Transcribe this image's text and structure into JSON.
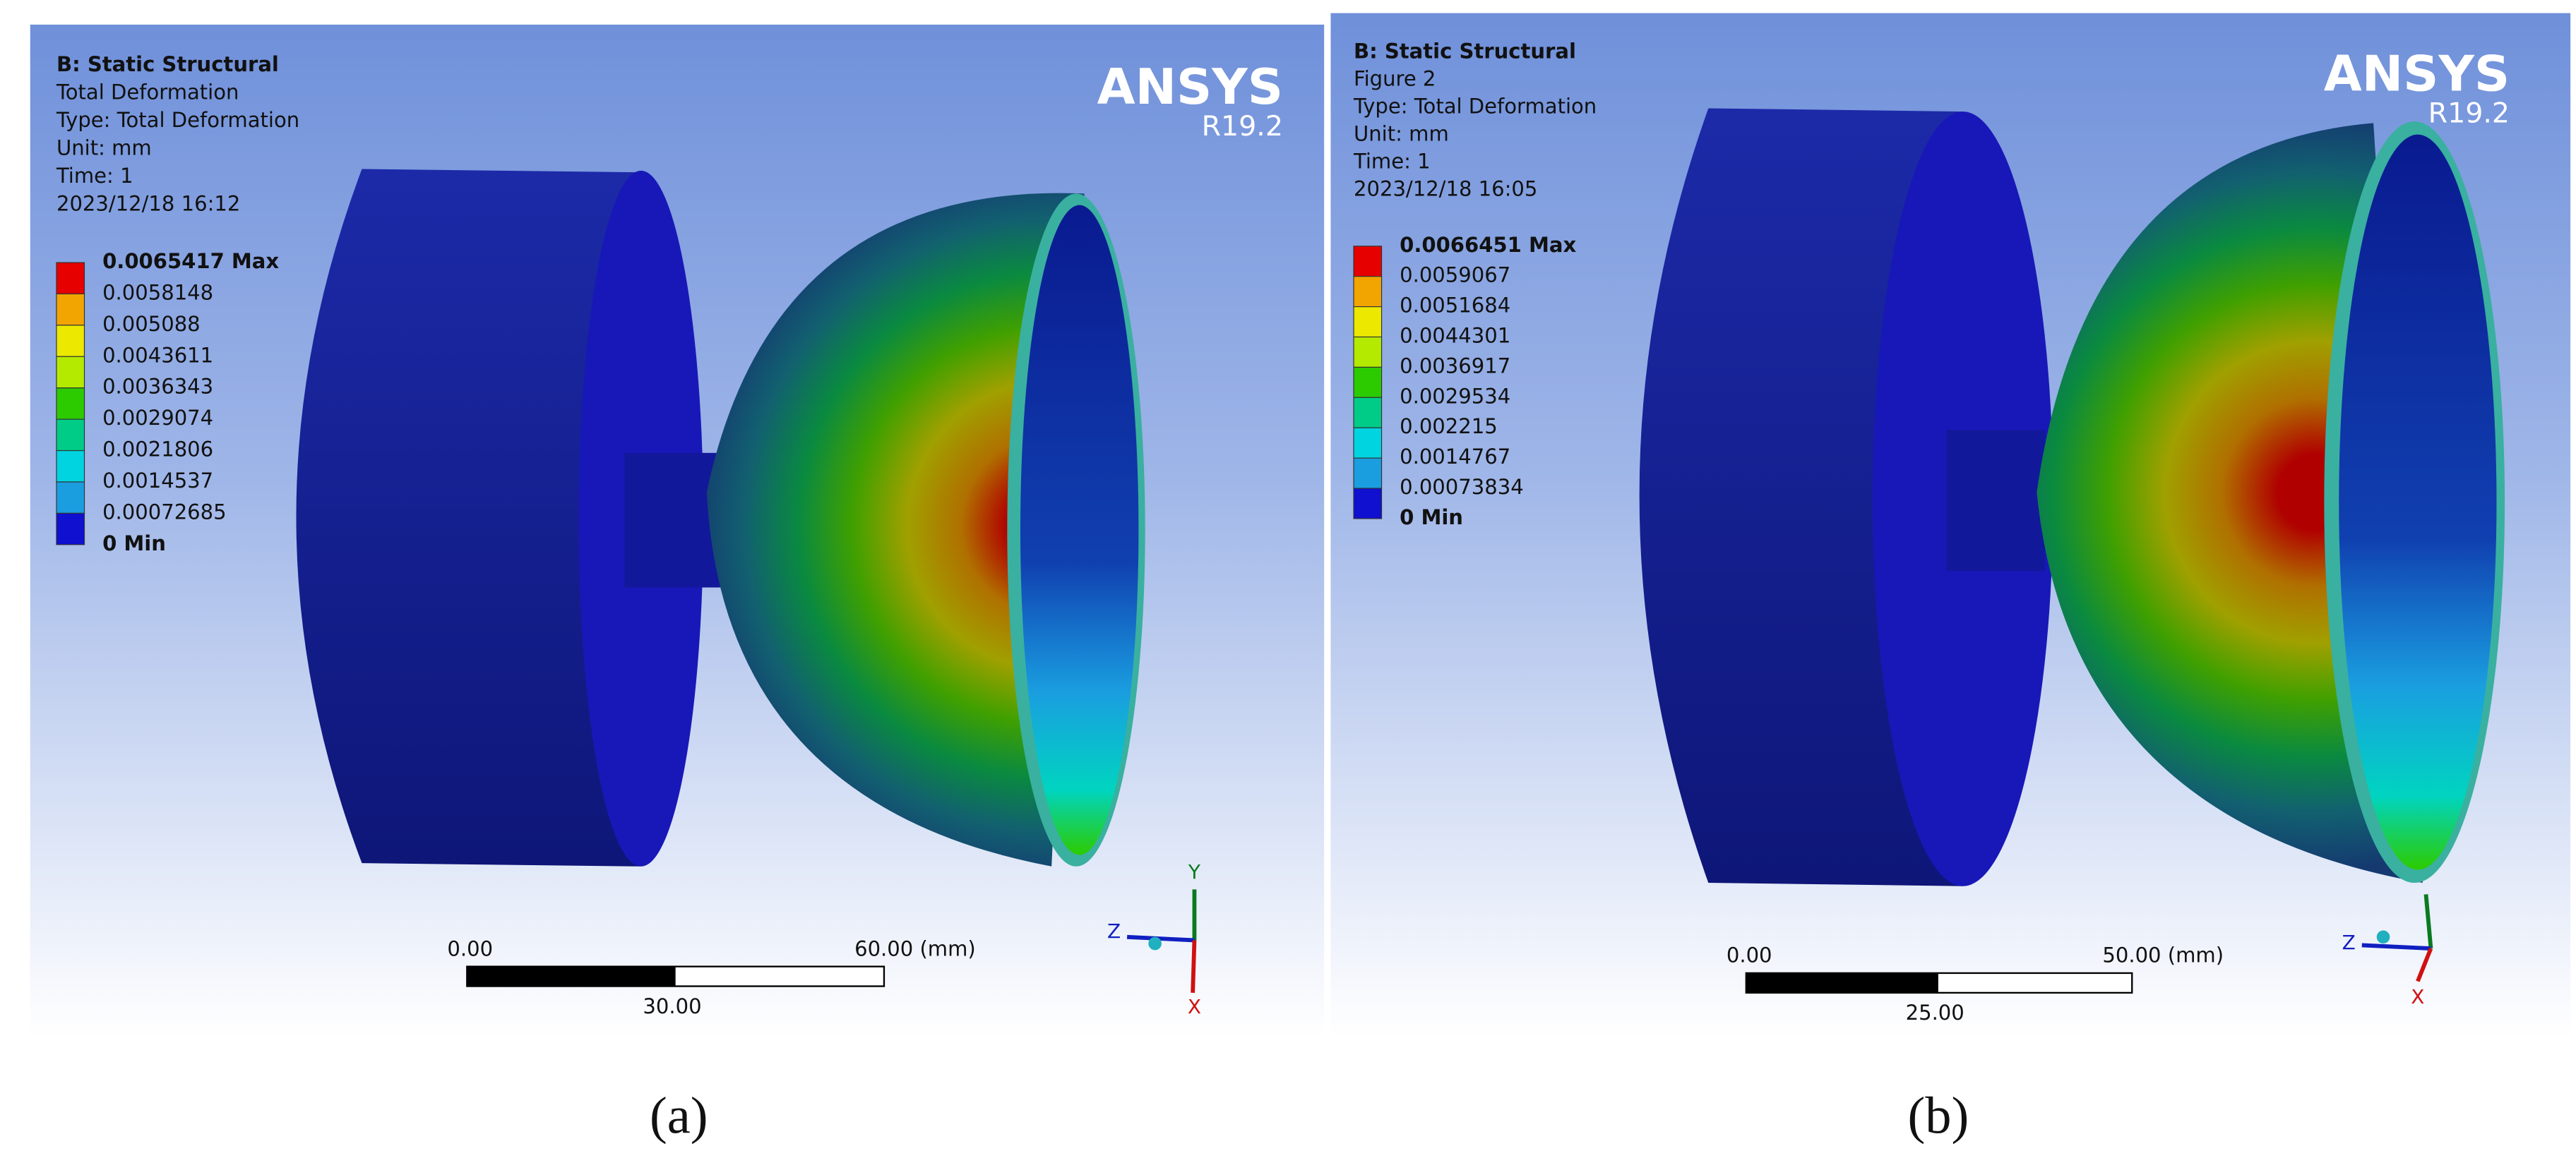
{
  "panels": [
    {
      "header": [
        "B: Static Structural",
        "Total Deformation",
        "Type: Total Deformation",
        "Unit: mm",
        "Time: 1",
        "2023/12/18 16:12"
      ],
      "legend": {
        "labels": [
          "0.0065417 Max",
          "0.0058148",
          "0.005088",
          "0.0043611",
          "0.0036343",
          "0.0029074",
          "0.0021806",
          "0.0014537",
          "0.00072685",
          "0 Min"
        ],
        "colors": [
          "#e60000",
          "#f2a500",
          "#ece800",
          "#b4ea00",
          "#2ccb00",
          "#00cc88",
          "#00d4e0",
          "#1a9ee0",
          "#1010d0"
        ]
      },
      "logo": {
        "brand": "ANSYS",
        "version": "R19.2"
      },
      "scale": {
        "start": "0.00",
        "end": "60.00 (mm)",
        "mid": "30.00"
      },
      "triad": {
        "y": "Y",
        "z": "Z",
        "x": "X"
      },
      "caption": "(a)"
    },
    {
      "header": [
        "B: Static Structural",
        "Figure 2",
        "Type: Total Deformation",
        "Unit: mm",
        "Time: 1",
        "2023/12/18 16:05"
      ],
      "legend": {
        "labels": [
          "0.0066451 Max",
          "0.0059067",
          "0.0051684",
          "0.0044301",
          "0.0036917",
          "0.0029534",
          "0.002215",
          "0.0014767",
          "0.00073834",
          "0 Min"
        ],
        "colors": [
          "#e60000",
          "#f2a500",
          "#ece800",
          "#b4ea00",
          "#2ccb00",
          "#00cc88",
          "#00d4e0",
          "#1a9ee0",
          "#1010d0"
        ]
      },
      "logo": {
        "brand": "ANSYS",
        "version": "R19.2"
      },
      "scale": {
        "start": "0.00",
        "end": "50.00 (mm)",
        "mid": "25.00"
      },
      "triad": {
        "z": "Z",
        "x": "X"
      },
      "caption": "(b)"
    }
  ]
}
